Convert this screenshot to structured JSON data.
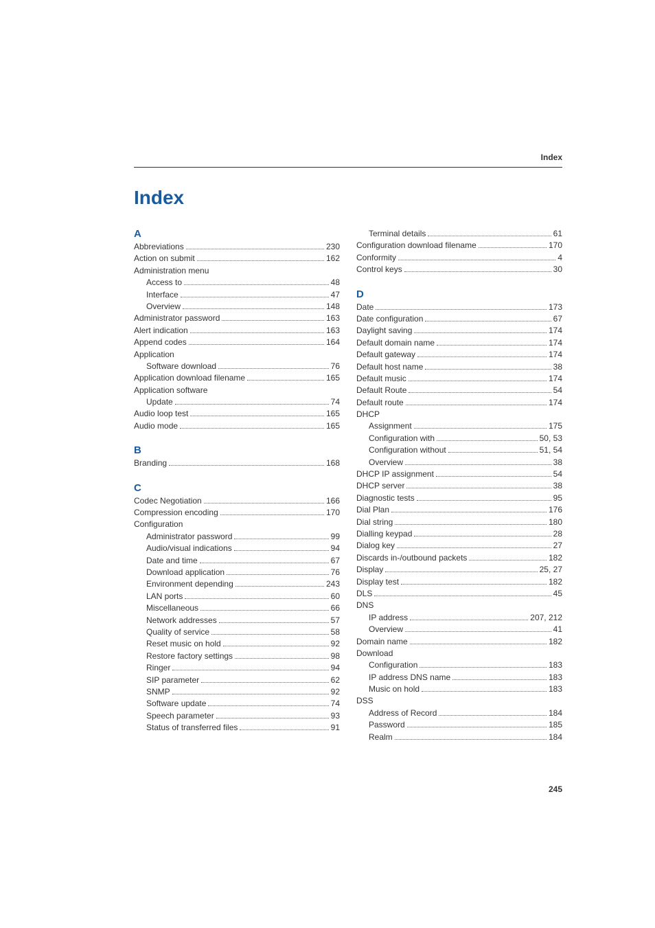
{
  "header": {
    "label": "Index"
  },
  "title": "Index",
  "pageNumber": "245",
  "colors": {
    "heading": "#1a5b9e",
    "text": "#333333",
    "background": "#ffffff"
  },
  "left": {
    "A": {
      "heading": "A",
      "entries": [
        {
          "label": "Abbreviations",
          "page": "230",
          "sub": false
        },
        {
          "label": "Action on submit",
          "page": "162",
          "sub": false
        },
        {
          "label": "Administration menu",
          "page": "",
          "sub": false
        },
        {
          "label": "Access to",
          "page": "48",
          "sub": true
        },
        {
          "label": "Interface",
          "page": "47",
          "sub": true
        },
        {
          "label": "Overview",
          "page": "148",
          "sub": true
        },
        {
          "label": "Administrator password",
          "page": "163",
          "sub": false
        },
        {
          "label": "Alert indication",
          "page": "163",
          "sub": false
        },
        {
          "label": "Append codes",
          "page": "164",
          "sub": false
        },
        {
          "label": "Application",
          "page": "",
          "sub": false
        },
        {
          "label": "Software download",
          "page": "76",
          "sub": true
        },
        {
          "label": "Application download filename",
          "page": "165",
          "sub": false
        },
        {
          "label": "Application software",
          "page": "",
          "sub": false
        },
        {
          "label": "Update",
          "page": "74",
          "sub": true
        },
        {
          "label": "Audio loop test",
          "page": "165",
          "sub": false
        },
        {
          "label": "Audio mode",
          "page": "165",
          "sub": false
        }
      ]
    },
    "B": {
      "heading": "B",
      "entries": [
        {
          "label": "Branding",
          "page": "168",
          "sub": false
        }
      ]
    },
    "C": {
      "heading": "C",
      "entries": [
        {
          "label": "Codec Negotiation",
          "page": "166",
          "sub": false
        },
        {
          "label": "Compression encoding",
          "page": "170",
          "sub": false
        },
        {
          "label": "Configuration",
          "page": "",
          "sub": false
        },
        {
          "label": "Administrator password",
          "page": "99",
          "sub": true
        },
        {
          "label": "Audio/visual indications",
          "page": "94",
          "sub": true
        },
        {
          "label": "Date and time",
          "page": "67",
          "sub": true
        },
        {
          "label": "Download application",
          "page": "76",
          "sub": true
        },
        {
          "label": "Environment depending",
          "page": "243",
          "sub": true
        },
        {
          "label": "LAN ports",
          "page": "60",
          "sub": true
        },
        {
          "label": "Miscellaneous",
          "page": "66",
          "sub": true
        },
        {
          "label": "Network addresses",
          "page": "57",
          "sub": true
        },
        {
          "label": "Quality of service",
          "page": "58",
          "sub": true
        },
        {
          "label": "Reset music on hold",
          "page": "92",
          "sub": true
        },
        {
          "label": "Restore factory settings",
          "page": "98",
          "sub": true
        },
        {
          "label": "Ringer",
          "page": "94",
          "sub": true
        },
        {
          "label": "SIP parameter",
          "page": "62",
          "sub": true
        },
        {
          "label": "SNMP",
          "page": "92",
          "sub": true
        },
        {
          "label": "Software update",
          "page": "74",
          "sub": true
        },
        {
          "label": "Speech parameter",
          "page": "93",
          "sub": true
        },
        {
          "label": "Status of transferred files",
          "page": "91",
          "sub": true
        }
      ]
    }
  },
  "right": {
    "Ccont": {
      "entries": [
        {
          "label": "Terminal details",
          "page": "61",
          "sub": true
        },
        {
          "label": "Configuration download filename",
          "page": "170",
          "sub": false
        },
        {
          "label": "Conformity",
          "page": "4",
          "sub": false
        },
        {
          "label": "Control keys",
          "page": "30",
          "sub": false
        }
      ]
    },
    "D": {
      "heading": "D",
      "entries": [
        {
          "label": "Date",
          "page": "173",
          "sub": false
        },
        {
          "label": "Date configuration",
          "page": "67",
          "sub": false
        },
        {
          "label": "Daylight saving",
          "page": "174",
          "sub": false
        },
        {
          "label": "Default domain name",
          "page": "174",
          "sub": false
        },
        {
          "label": "Default gateway",
          "page": "174",
          "sub": false
        },
        {
          "label": "Default host name",
          "page": "38",
          "sub": false
        },
        {
          "label": "Default music",
          "page": "174",
          "sub": false
        },
        {
          "label": "Default Route",
          "page": "54",
          "sub": false
        },
        {
          "label": "Default route",
          "page": "174",
          "sub": false
        },
        {
          "label": "DHCP",
          "page": "",
          "sub": false
        },
        {
          "label": "Assignment",
          "page": "175",
          "sub": true
        },
        {
          "label": "Configuration with",
          "page": "50, 53",
          "sub": true
        },
        {
          "label": "Configuration without",
          "page": "51, 54",
          "sub": true
        },
        {
          "label": "Overview",
          "page": "38",
          "sub": true
        },
        {
          "label": "DHCP IP assignment",
          "page": "54",
          "sub": false
        },
        {
          "label": "DHCP server",
          "page": "38",
          "sub": false
        },
        {
          "label": "Diagnostic tests",
          "page": "95",
          "sub": false
        },
        {
          "label": "Dial Plan",
          "page": "176",
          "sub": false
        },
        {
          "label": "Dial string",
          "page": "180",
          "sub": false
        },
        {
          "label": "Dialling keypad",
          "page": "28",
          "sub": false
        },
        {
          "label": "Dialog key",
          "page": "27",
          "sub": false
        },
        {
          "label": "Discards in-/outbound packets",
          "page": "182",
          "sub": false
        },
        {
          "label": "Display",
          "page": "25, 27",
          "sub": false
        },
        {
          "label": "Display test",
          "page": "182",
          "sub": false
        },
        {
          "label": "DLS",
          "page": "45",
          "sub": false
        },
        {
          "label": "DNS",
          "page": "",
          "sub": false
        },
        {
          "label": "IP address",
          "page": "207, 212",
          "sub": true
        },
        {
          "label": "Overview",
          "page": "41",
          "sub": true
        },
        {
          "label": "Domain name",
          "page": "182",
          "sub": false
        },
        {
          "label": "Download",
          "page": "",
          "sub": false
        },
        {
          "label": "Configuration",
          "page": "183",
          "sub": true
        },
        {
          "label": "IP address DNS name",
          "page": "183",
          "sub": true
        },
        {
          "label": "Music on hold",
          "page": "183",
          "sub": true
        },
        {
          "label": "DSS",
          "page": "",
          "sub": false
        },
        {
          "label": "Address of Record",
          "page": "184",
          "sub": true
        },
        {
          "label": "Password",
          "page": "185",
          "sub": true
        },
        {
          "label": "Realm",
          "page": "184",
          "sub": true
        }
      ]
    }
  }
}
